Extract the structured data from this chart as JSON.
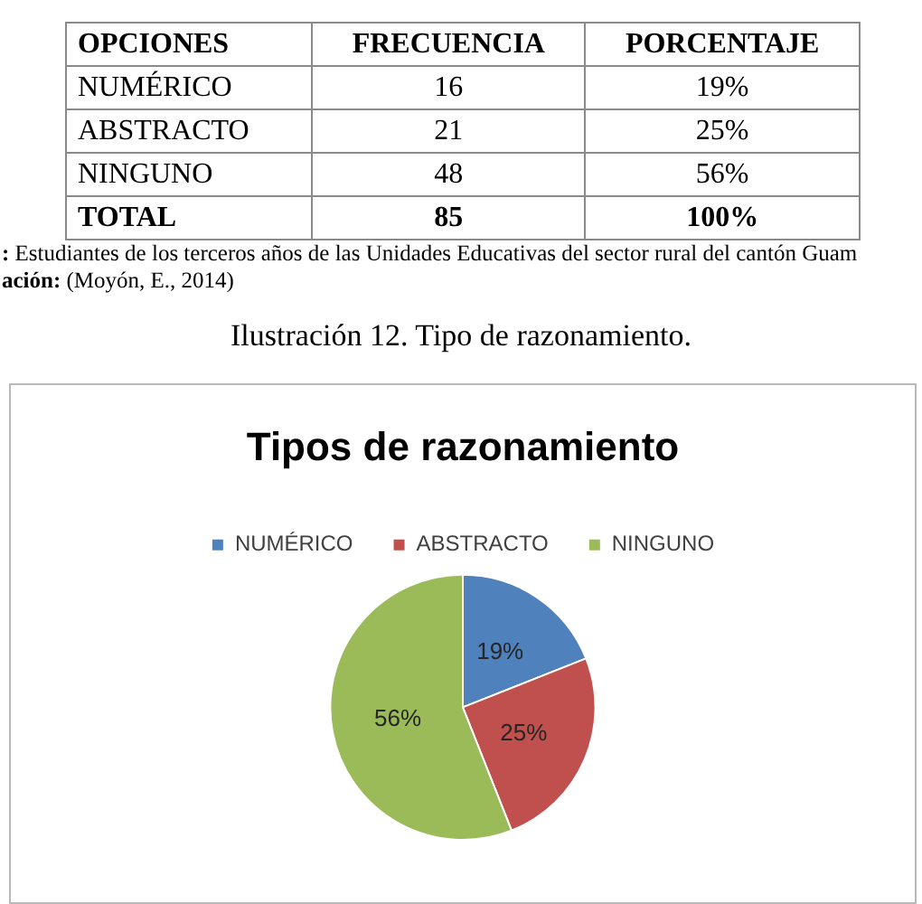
{
  "chart_data": [
    {
      "type": "other",
      "annotations": [
        "OPCIONES",
        "FRECUENCIA",
        "PORCENTAJE",
        "NUMÉRICO",
        "16",
        "19%",
        "ABSTRACTO",
        "21",
        "25%",
        "NINGUNO",
        "48",
        "56%",
        "TOTAL",
        "85",
        "100%",
        ": Estudiantes  de los terceros años de las Unidades Educativas del sector rural del cantón Guam",
        "ación: (Moyón, E., 2014)"
      ]
    },
    {
      "type": "pie",
      "title": "Tipos de razonamiento",
      "annotations": [
        "Ilustración 12. Tipo de razonamiento."
      ],
      "categories": [
        "NUMÉRICO",
        "ABSTRACTO",
        "NINGUNO"
      ],
      "values": [
        19,
        25,
        56
      ],
      "colors": [
        "#4f81bd",
        "#c0504d",
        "#9bbb59"
      ],
      "value_labels": [
        "19%",
        "25%",
        "56%"
      ],
      "legend": "top"
    }
  ]
}
